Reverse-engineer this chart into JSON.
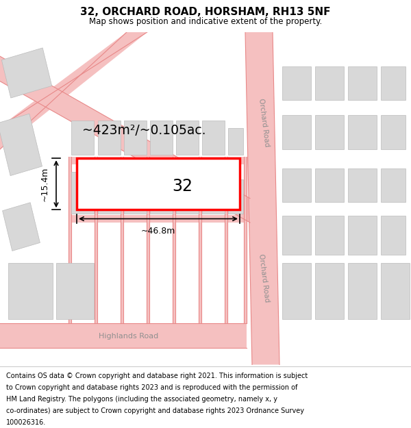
{
  "title": "32, ORCHARD ROAD, HORSHAM, RH13 5NF",
  "subtitle": "Map shows position and indicative extent of the property.",
  "footer_lines": [
    "Contains OS data © Crown copyright and database right 2021. This information is subject",
    "to Crown copyright and database rights 2023 and is reproduced with the permission of",
    "HM Land Registry. The polygons (including the associated geometry, namely x, y",
    "co-ordinates) are subject to Crown copyright and database rights 2023 Ordnance Survey",
    "100026316."
  ],
  "map_bg": "#ffffff",
  "road_color": "#f5c0c0",
  "road_line_color": "#e88888",
  "building_fill": "#d8d8d8",
  "building_edge": "#bbbbbb",
  "highlight_fill": "#ffffff",
  "highlight_edge": "#ff0000",
  "highlight_lw": 2.5,
  "label_number": "32",
  "area_label": "~423m²/~0.105ac.",
  "width_label": "~46.8m",
  "height_label": "~15.4m",
  "road_label_orchard_upper": "Orchard Road",
  "road_label_orchard_lower": "Orchard Road",
  "road_label_highlands": "Highlands Road"
}
